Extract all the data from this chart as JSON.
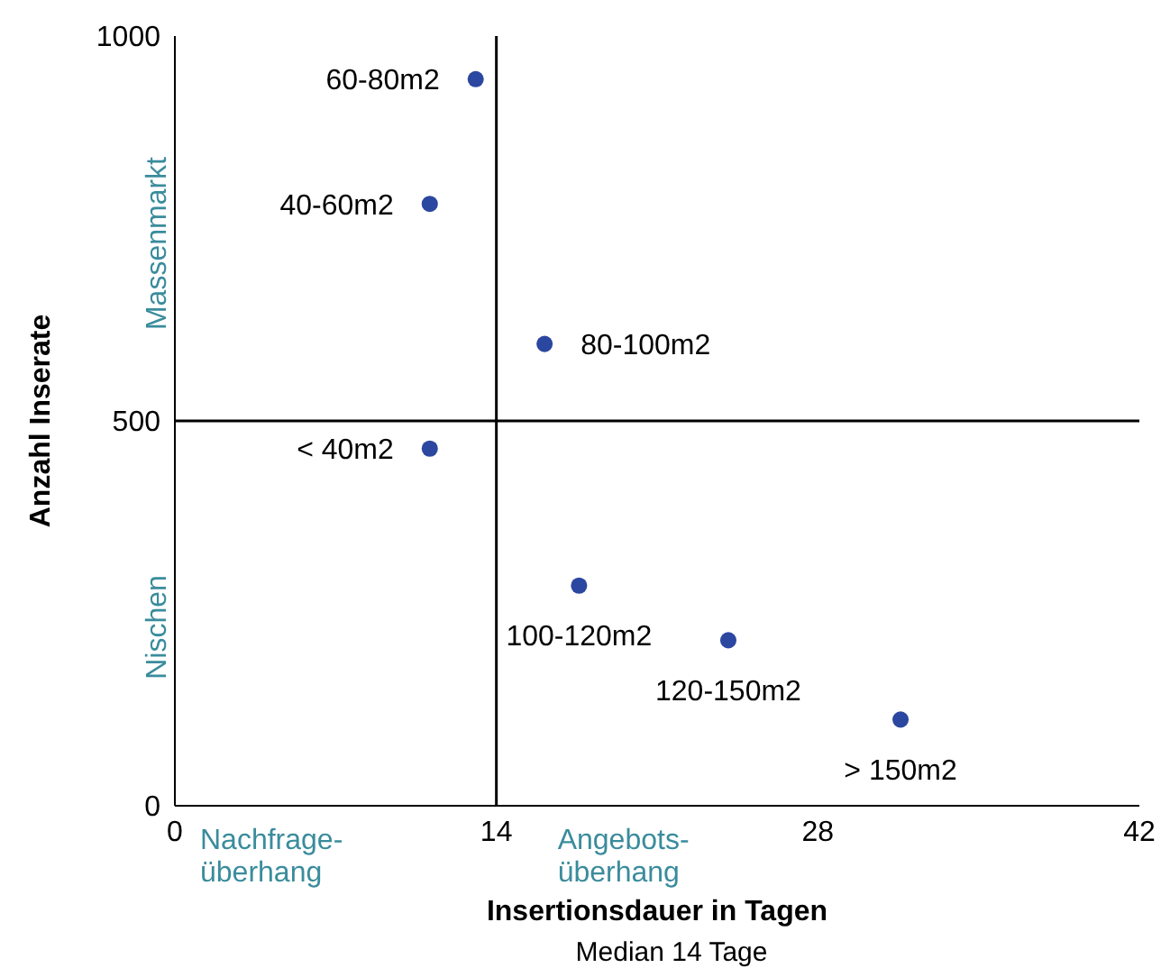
{
  "chart_data": {
    "type": "scatter",
    "xlabel": "Insertionsdauer in Tagen",
    "ylabel": "Anzahl Inserate",
    "x": [
      13.1,
      11.1,
      16.1,
      11.1,
      17.6,
      24.1,
      31.6
    ],
    "values": [
      944,
      782,
      600,
      464,
      286,
      215,
      112
    ],
    "color": "#2b47a0",
    "marker": "circle",
    "grid": false,
    "legend": false,
    "xlim": [
      0,
      42
    ],
    "xticks": [
      0,
      14,
      28,
      42
    ],
    "ylim": [
      0,
      1000
    ],
    "yticks": [
      0,
      500,
      1000
    ],
    "ref_lines": [
      {
        "axis": "x",
        "value": 14,
        "color": "#000000"
      },
      {
        "axis": "y",
        "value": 500,
        "color": "#000000"
      }
    ],
    "annotations": [
      {
        "text": "60-80m2",
        "x": 13.1,
        "y": 944
      },
      {
        "text": "40-60m2",
        "x": 11.1,
        "y": 782
      },
      {
        "text": "80-100m2",
        "x": 16.1,
        "y": 600
      },
      {
        "text": "< 40m2",
        "x": 11.1,
        "y": 464
      },
      {
        "text": "100-120m2",
        "x": 17.6,
        "y": 286
      },
      {
        "text": "120-150m2",
        "x": 24.1,
        "y": 215
      },
      {
        "text": "> 150m2",
        "x": 31.6,
        "y": 112
      },
      "Massenmarkt",
      "Nischen",
      "Nachfrage-\nüberhang",
      "Angebots-\nüberhang",
      "Median 14 Tage"
    ]
  }
}
